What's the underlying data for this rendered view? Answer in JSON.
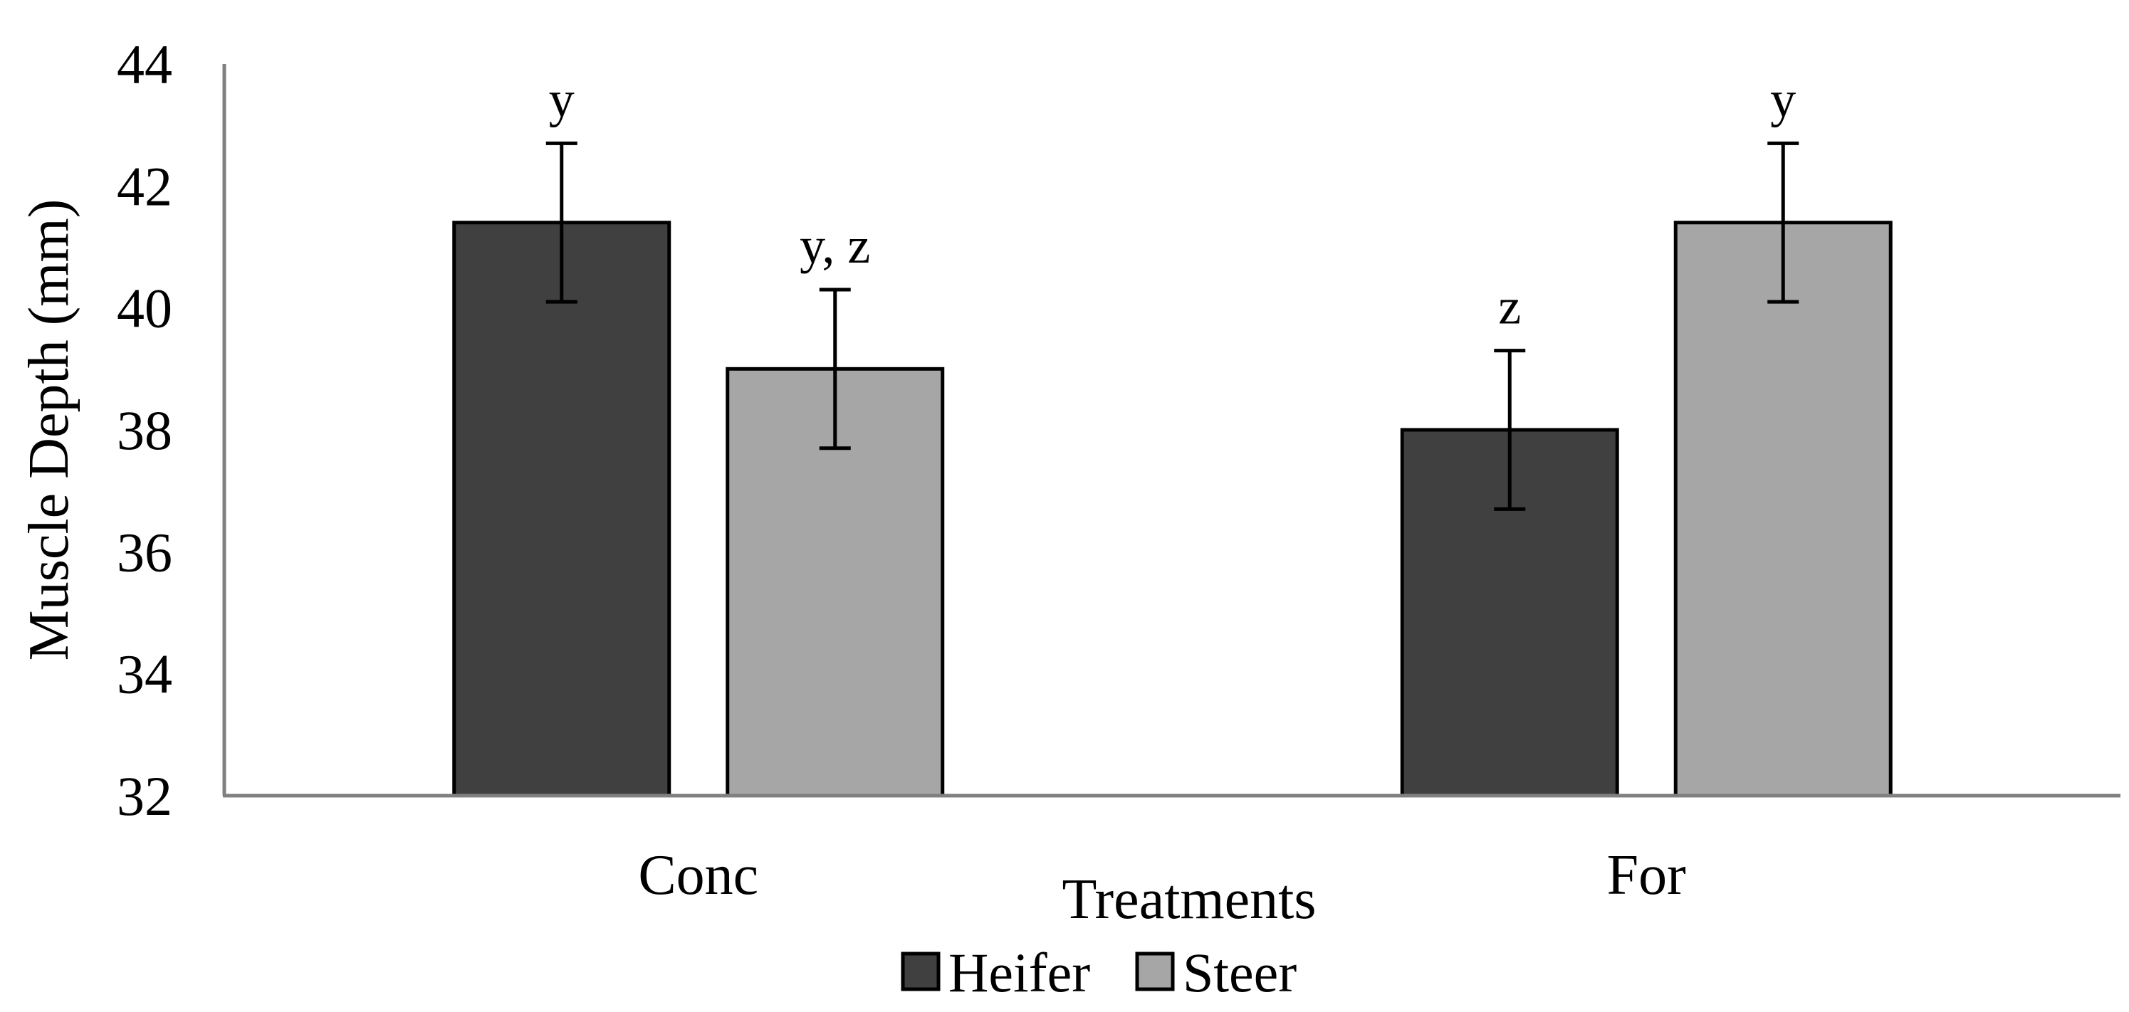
{
  "chart_data": {
    "type": "bar",
    "title": "",
    "xlabel": "Treatments",
    "ylabel": "Muscle Depth (mm)",
    "categories": [
      "Conc",
      "For"
    ],
    "ylim": [
      32,
      44
    ],
    "yticks": [
      32,
      34,
      36,
      38,
      40,
      42,
      44
    ],
    "yticks_labels": [
      "32",
      "34",
      "36",
      "38",
      "40",
      "42",
      "44"
    ],
    "grid": false,
    "legend_position": "bottom-center",
    "series": [
      {
        "name": "Heifer",
        "color": "#404040",
        "values": [
          41.4,
          38.0
        ],
        "errors": [
          1.3,
          1.3
        ],
        "significance": [
          "y",
          "z"
        ]
      },
      {
        "name": "Steer",
        "color": "#a6a6a6",
        "values": [
          39.0,
          41.4
        ],
        "errors": [
          1.3,
          1.3
        ],
        "significance": [
          "y, z",
          "y"
        ]
      }
    ]
  }
}
